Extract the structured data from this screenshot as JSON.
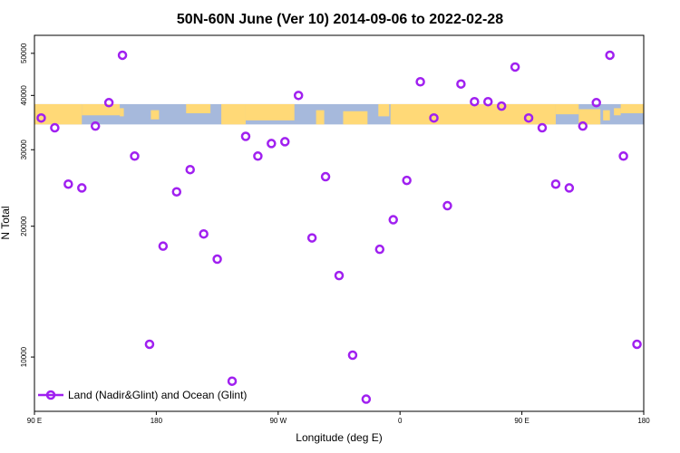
{
  "chart_data": {
    "type": "scatter",
    "title": "50N-60N June (Ver 10)   2014-09-06 to 2022-02-28",
    "xlabel": "Longitude (deg E)",
    "ylabel": "N Total",
    "x_ticks": [
      {
        "value": 0,
        "label": "90 E"
      },
      {
        "value": 90,
        "label": "180"
      },
      {
        "value": 180,
        "label": "90 W"
      },
      {
        "value": 270,
        "label": "0"
      },
      {
        "value": 360,
        "label": "90 E"
      },
      {
        "value": 450,
        "label": "180"
      }
    ],
    "y_scale": "log",
    "y_ticks": [
      {
        "value": 10000,
        "label": "10000"
      },
      {
        "value": 20000,
        "label": "20000"
      },
      {
        "value": 30000,
        "label": "30000"
      },
      {
        "value": 40000,
        "label": "40000"
      },
      {
        "value": 50000,
        "label": "50000"
      }
    ],
    "xlim": [
      0,
      450
    ],
    "ylim": [
      7500,
      55000
    ],
    "map_band": {
      "y_low": 34300,
      "y_high": 38200,
      "ocean_color": "#a6b9dc",
      "land_color": "#ffd977"
    },
    "series": [
      {
        "name": "Land (Nadir&Glint) and Ocean (Glint)",
        "color": "#a020f0",
        "marker": "open-circle",
        "x": [
          5,
          15,
          25,
          35,
          45,
          55,
          65,
          74,
          85,
          95,
          105,
          115,
          125,
          135,
          146,
          156,
          165,
          175,
          185,
          195,
          205,
          215,
          225,
          235,
          245,
          255,
          265,
          275,
          285,
          295,
          305,
          315,
          325,
          335,
          345,
          355,
          365,
          375,
          385,
          395,
          405,
          415,
          425,
          435,
          445
        ],
        "y": [
          35500,
          33700,
          25000,
          24500,
          34000,
          38500,
          49500,
          29000,
          10700,
          18000,
          24000,
          27000,
          19200,
          16800,
          8800,
          32200,
          29000,
          31000,
          31300,
          40000,
          18800,
          26000,
          15400,
          10100,
          8000,
          17700,
          20700,
          25500,
          43000,
          35500,
          22300,
          42500,
          38700,
          38700,
          37800,
          46500,
          35500,
          33700,
          25000,
          24500,
          34000,
          38500,
          49500,
          29000,
          10700
        ]
      }
    ],
    "legend": {
      "location": "bottom-left"
    }
  }
}
